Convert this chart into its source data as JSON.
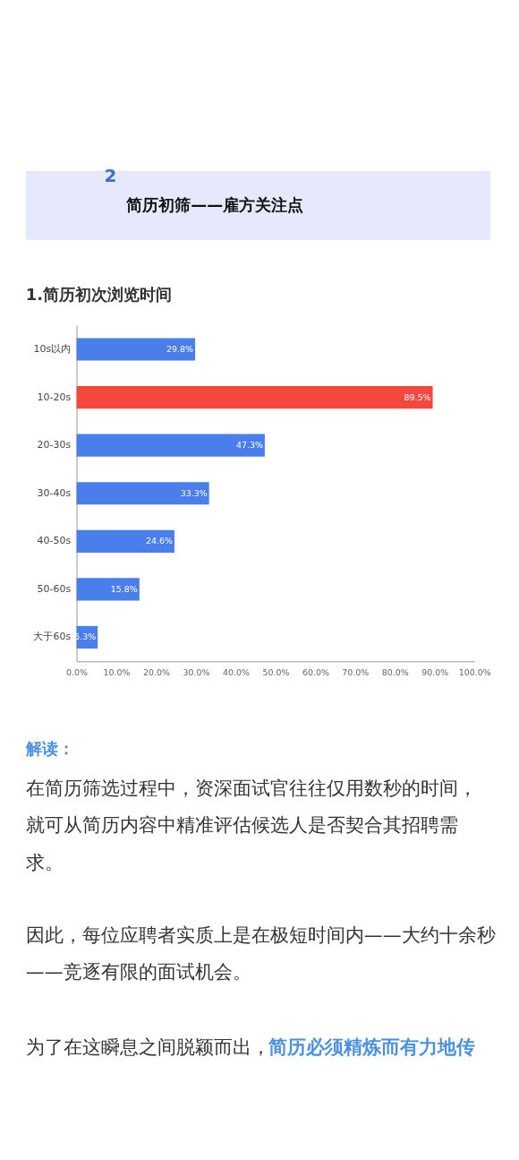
{
  "chart_data": {
    "type": "bar",
    "orientation": "horizontal",
    "title": "1.简历初次浏览时间",
    "categories": [
      "10s以内",
      "10-20s",
      "20-30s",
      "30-40s",
      "40-50s",
      "50-60s",
      "大于60s"
    ],
    "values": [
      29.8,
      89.5,
      47.3,
      33.3,
      24.6,
      15.8,
      5.3
    ],
    "colors": [
      "#4a7eeb",
      "#f4483f",
      "#4a7eeb",
      "#4a7eeb",
      "#4a7eeb",
      "#4a7eeb",
      "#4a7eeb"
    ],
    "value_labels": [
      "29.8%",
      "89.5%",
      "47.3%",
      "33.3%",
      "24.6%",
      "15.8%",
      "5.3%"
    ],
    "xlim": [
      0,
      100
    ],
    "xticks": [
      {
        "value": 0,
        "label": "0.0%"
      },
      {
        "value": 10,
        "label": "10.0%"
      },
      {
        "value": 20,
        "label": "20.0%"
      },
      {
        "value": 30,
        "label": "30.0%"
      },
      {
        "value": 40,
        "label": "40.0%"
      },
      {
        "value": 50,
        "label": "50.0%"
      },
      {
        "value": 60,
        "label": "60.0%"
      },
      {
        "value": 70,
        "label": "70.0%"
      },
      {
        "value": 80,
        "label": "80.0%"
      },
      {
        "value": 90,
        "label": "90.0%"
      },
      {
        "value": 100,
        "label": "100.0%"
      }
    ],
    "annotations": [
      "2",
      "简历初筛——雇方关注点",
      "解读：",
      "在简历筛选过程中，资深面试官往往仅用数秒的时间，就可从简历内容中精准评估候选人是否契合其招聘需求。",
      "因此，每位应聘者实质上是在极短时间内——大约十余秒——竞逐有限的面试机会。",
      "为了在这瞬息之间脱颖而出，",
      "简历必须精炼而有力地传"
    ]
  }
}
